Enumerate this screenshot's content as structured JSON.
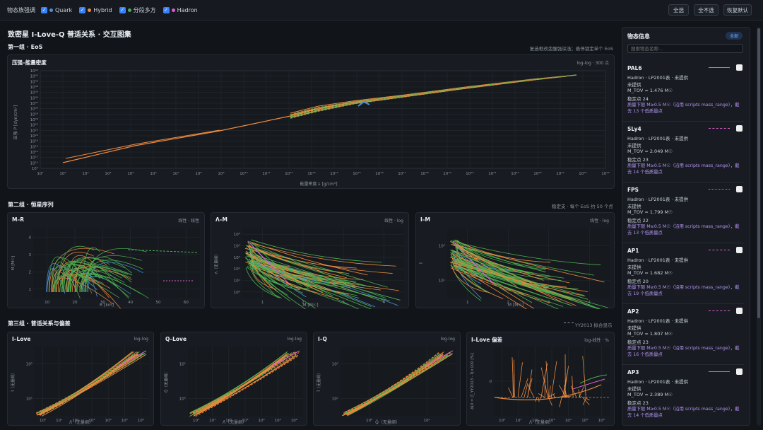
{
  "toolbar": {
    "label": "物态族强调",
    "categories": [
      {
        "label": "Quark",
        "color": "#4a90d9"
      },
      {
        "label": "Hybrid",
        "color": "#f08a3e"
      },
      {
        "label": "分段多方",
        "color": "#4caf50"
      },
      {
        "label": "Hadron",
        "color": "#d75fd0"
      }
    ],
    "select_all": "全选",
    "select_none": "全不选",
    "restore_default": "恢复默认"
  },
  "page": {
    "title": "致密星 I-Love-Q 普适关系 · 交互图集"
  },
  "group1": {
    "title": "第一组 · EoS",
    "note": "复选框改变醒强深浅；悬停锁定单个 EoS",
    "panel": {
      "title": "压强–能量密度",
      "note": "log-log · 300 点",
      "ylabel": "压强 P [dyn/cm²]",
      "xlabel": "能量密度 ε [g/cm³]",
      "xticks": [
        "10¹",
        "10²",
        "10³",
        "10⁴",
        "10⁵",
        "10⁶",
        "10⁷",
        "10⁸",
        "10⁹",
        "10¹⁰",
        "10¹¹",
        "10¹²",
        "10¹³",
        "10¹⁴",
        "10¹⁵",
        "10¹⁶",
        "10¹⁷",
        "10¹⁸",
        "10¹⁹",
        "10²⁰",
        "10²¹",
        "10²²",
        "10²³",
        "10²⁴",
        "10²⁵",
        "10²⁶"
      ],
      "yticks": [
        "10⁴",
        "10¹⁰",
        "10¹²",
        "10¹⁴",
        "10¹⁶",
        "10¹⁸",
        "10²⁰",
        "10²²",
        "10²⁴",
        "10²⁶",
        "10²⁸",
        "10³⁰",
        "10³²",
        "10³⁴",
        "10³⁶",
        "10³⁸",
        "10⁴⁰",
        "10⁴²",
        "10⁴⁴"
      ]
    }
  },
  "group2": {
    "title": "第二组 · 恒星序列",
    "note": "稳定支 · 每个 EoS 约 50 个点",
    "panels": [
      {
        "title": "M–R",
        "note": "线性 · 线性",
        "xlabel": "R [km]",
        "ylabel": "M [M☉]",
        "xticks": [
          "10",
          "20",
          "30",
          "40",
          "50",
          "60"
        ],
        "yticks": [
          "1",
          "2",
          "3",
          "4"
        ]
      },
      {
        "title": "Λ–M",
        "note": "线性 · log",
        "xlabel": "M [M☉]",
        "ylabel": "Λ̄（无量纲）",
        "xticks": [
          "1",
          "2",
          "3",
          "4"
        ],
        "yticks": [
          "10⁰",
          "10¹",
          "10²",
          "10³",
          "10⁴",
          "10⁵"
        ]
      },
      {
        "title": "I–M",
        "note": "线性 · log",
        "xlabel": "M [M☉]",
        "ylabel": "Ī",
        "xticks": [
          "1",
          "2",
          "3",
          "4"
        ],
        "yticks": [
          "10¹",
          "10²"
        ]
      }
    ]
  },
  "group3": {
    "title": "第三组 · 普适关系与偏差",
    "note": "YY2013 拟合显示",
    "panels": [
      {
        "title": "I–Love",
        "note": "log-log",
        "xlabel": "Λ̄（无量纲）",
        "ylabel": "Ī（无量纲）",
        "xticks": [
          "10⁰",
          "10¹",
          "10²",
          "10³",
          "10⁴",
          "10⁵",
          "10⁶"
        ],
        "yticks": [
          "10¹",
          "10²"
        ]
      },
      {
        "title": "Q–Love",
        "note": "log-log",
        "xlabel": "Λ̄（无量纲）",
        "ylabel": "Q̄（无量纲）",
        "xticks": [
          "10⁰",
          "10¹",
          "10²",
          "10³",
          "10⁴",
          "10⁵",
          "10⁶"
        ],
        "yticks": [
          "10⁰",
          "10¹"
        ]
      },
      {
        "title": "I–Q",
        "note": "log-log",
        "xlabel": "Q̄（无量纲）",
        "ylabel": "Ī（无量纲）",
        "xticks": [
          "10⁰",
          "10¹"
        ],
        "yticks": [
          "10¹",
          "10²"
        ]
      },
      {
        "title": "I–Love 偏差",
        "note": "log-线性 · %",
        "xlabel": "Λ̄（无量纲）",
        "ylabel": "ΔI/I = (Ī_YY2013 - Ī)×100 [%]",
        "xticks": [
          "10⁰",
          "10¹",
          "10²",
          "10³",
          "10⁴",
          "10⁵",
          "10⁶"
        ],
        "yticks": [
          "0"
        ]
      }
    ]
  },
  "sidebar": {
    "title": "物态信息",
    "all_badge": "全部",
    "search_placeholder": "搜索物态名称...",
    "items": [
      {
        "name": "PAL6",
        "line1": "Hadron · LP2001表 · 未提供",
        "line2": "未提供",
        "line3": "M_TOV = 1.476 M☉",
        "line4": "稳定点 24",
        "warn": "质量下限 M≥0.5 M☉（沿用 scripts mass_range），截去 13 个低质量点",
        "dash": "solid"
      },
      {
        "name": "SLy4",
        "line1": "Hadron · LP2001表 · 未提供",
        "line2": "未提供",
        "line3": "M_TOV = 2.049 M☉",
        "line4": "稳定点 23",
        "warn": "质量下限 M≥0.5 M☉（沿用 scripts mass_range），截去 14 个低质量点",
        "dash": "dashed"
      },
      {
        "name": "FPS",
        "line1": "Hadron · LP2001表 · 未提供",
        "line2": "未提供",
        "line3": "M_TOV = 1.799 M☉",
        "line4": "稳定点 22",
        "warn": "质量下限 M≥0.5 M☉（沿用 scripts mass_range），截去 13 个低质量点",
        "dash": "dotted"
      },
      {
        "name": "AP1",
        "line1": "Hadron · LP2001表 · 未提供",
        "line2": "未提供",
        "line3": "M_TOV = 1.682 M☉",
        "line4": "稳定点 20",
        "warn": "质量下限 M≥0.5 M☉（沿用 scripts mass_range），截去 19 个低质量点",
        "dash": "dashdot"
      },
      {
        "name": "AP2",
        "line1": "Hadron · LP2001表 · 未提供",
        "line2": "未提供",
        "line3": "M_TOV = 1.807 M☉",
        "line4": "稳定点 23",
        "warn": "质量下限 M≥0.5 M☉（沿用 scripts mass_range），截去 16 个低质量点",
        "dash": "longdash"
      },
      {
        "name": "AP3",
        "line1": "Hadron · LP2001表 · 未提供",
        "line2": "未提供",
        "line3": "M_TOV = 2.389 M☉",
        "line4": "稳定点 23",
        "warn": "质量下限 M≥0.5 M☉（沿用 scripts mass_range），截去 14 个低质量点",
        "dash": "solid"
      }
    ]
  }
}
